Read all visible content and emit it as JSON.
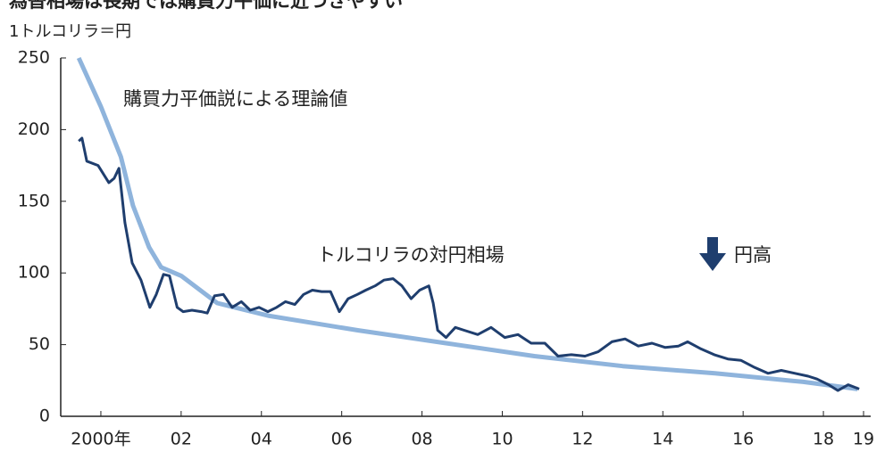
{
  "chart_data": {
    "type": "line",
    "title": "為替相場は長期では購買力平価に近づきやすい",
    "y_axis_label": "1トルコリラ＝円",
    "annotation": "円高",
    "xlim": [
      1999,
      2019.4
    ],
    "ylim": [
      0,
      250
    ],
    "yticks": [
      0,
      50,
      100,
      150,
      200,
      250
    ],
    "xticks": [
      {
        "value": 2000,
        "label": "2000年"
      },
      {
        "value": 2002,
        "label": "02"
      },
      {
        "value": 2004,
        "label": "04"
      },
      {
        "value": 2006,
        "label": "06"
      },
      {
        "value": 2008,
        "label": "08"
      },
      {
        "value": 2010,
        "label": "10"
      },
      {
        "value": 2012,
        "label": "12"
      },
      {
        "value": 2014,
        "label": "14"
      },
      {
        "value": 2016,
        "label": "16"
      },
      {
        "value": 2018,
        "label": "18"
      },
      {
        "value": 2019,
        "label": "19"
      }
    ],
    "grid": false,
    "series": [
      {
        "name": "購買力平価説による理論値",
        "color": "#8fb4dc",
        "x": [
          1999.45,
          2000,
          2000.5,
          2000.8,
          2001.2,
          2001.5,
          2002,
          2002.9,
          2004.2,
          2006.4,
          2008.6,
          2010.8,
          2013,
          2015.3,
          2017.5,
          2018.85
        ],
        "values": [
          250,
          216,
          181,
          147,
          118,
          104,
          98,
          79,
          70,
          60,
          51,
          42,
          35,
          30,
          24,
          19
        ]
      },
      {
        "name": "トルコリラの対円相場",
        "color": "#1f3e6e",
        "x": [
          1999.45,
          1999.53,
          1999.65,
          1999.93,
          2000.2,
          2000.33,
          2000.45,
          2000.6,
          2000.78,
          2001.0,
          2001.22,
          2001.38,
          2001.56,
          2001.71,
          2001.9,
          2002.05,
          2002.27,
          2002.5,
          2002.65,
          2002.83,
          2003.05,
          2003.27,
          2003.5,
          2003.72,
          2003.94,
          2004.16,
          2004.38,
          2004.6,
          2004.83,
          2005.05,
          2005.27,
          2005.5,
          2005.72,
          2005.94,
          2006.16,
          2006.39,
          2006.6,
          2006.83,
          2007.05,
          2007.28,
          2007.5,
          2007.73,
          2007.94,
          2008.17,
          2008.28,
          2008.39,
          2008.6,
          2008.83,
          2009.05,
          2009.39,
          2009.72,
          2010.06,
          2010.39,
          2010.72,
          2011.06,
          2011.39,
          2011.72,
          2012.06,
          2012.39,
          2012.73,
          2013.06,
          2013.39,
          2013.73,
          2014.06,
          2014.39,
          2014.62,
          2014.95,
          2015.28,
          2015.62,
          2015.95,
          2016.29,
          2016.62,
          2016.95,
          2017.29,
          2017.62,
          2017.84,
          2018.13,
          2018.36,
          2018.62,
          2018.89
        ],
        "values": [
          192,
          194,
          178,
          175,
          163,
          166,
          173,
          135,
          107,
          95,
          76,
          85,
          99,
          98,
          76,
          73,
          74,
          73,
          72,
          84,
          85,
          76,
          80,
          74,
          76,
          73,
          76,
          80,
          78,
          85,
          88,
          87,
          87,
          73,
          82,
          85,
          88,
          91,
          95,
          96,
          91,
          82,
          88,
          91,
          79,
          60,
          55,
          62,
          60,
          57,
          62,
          55,
          57,
          51,
          51,
          42,
          43,
          42,
          45,
          52,
          54,
          49,
          51,
          48,
          49,
          52,
          47,
          43,
          40,
          39,
          34,
          30,
          32,
          30,
          28,
          26,
          22,
          18,
          22,
          19
        ]
      }
    ]
  }
}
